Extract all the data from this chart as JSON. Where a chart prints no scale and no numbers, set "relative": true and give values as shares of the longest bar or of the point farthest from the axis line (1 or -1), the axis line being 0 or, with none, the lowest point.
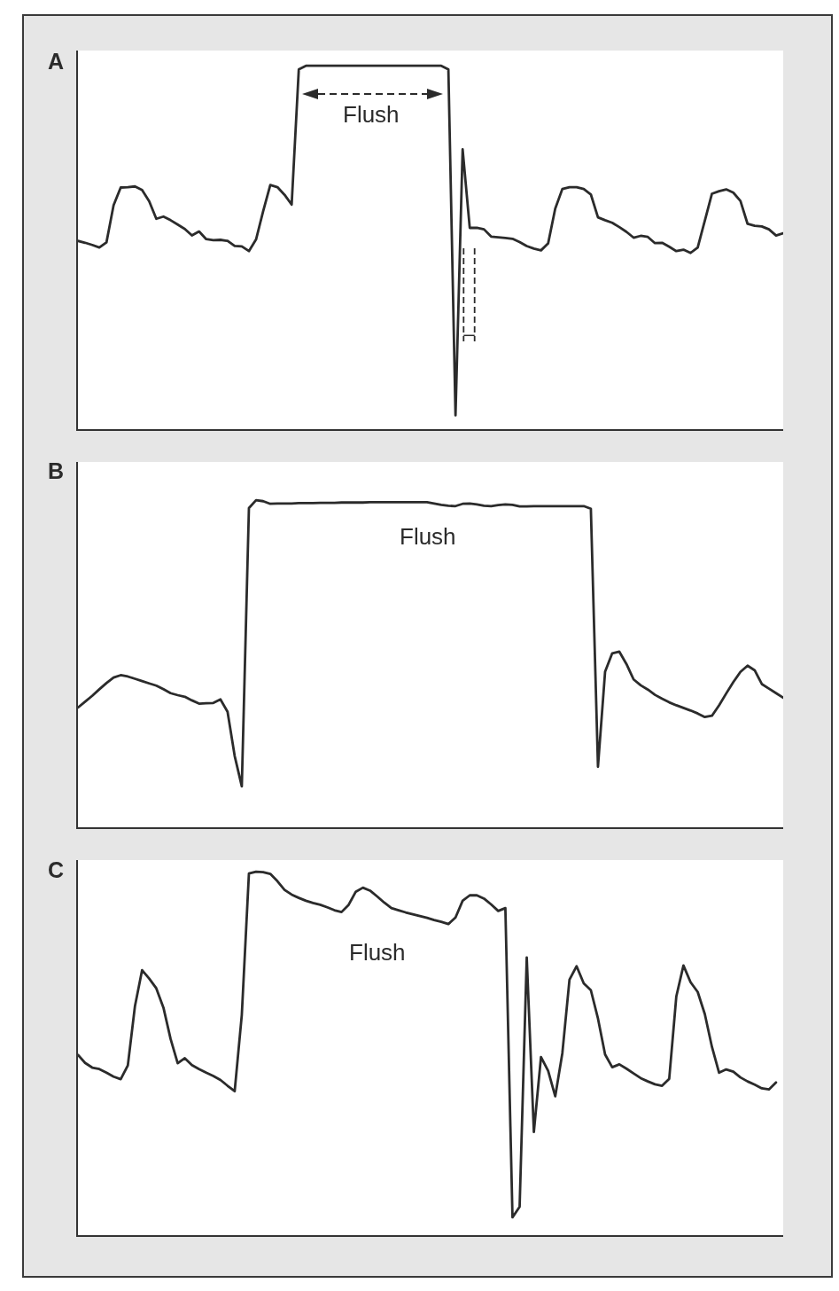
{
  "chart_data": [
    {
      "type": "line",
      "title": "A",
      "annotations": [
        "Flush"
      ],
      "relative": true,
      "color": "#2b2b2b",
      "categories": [
        null,
        null,
        null,
        null,
        null,
        null,
        null,
        null,
        null,
        null,
        null,
        null,
        null,
        null,
        null,
        null,
        null,
        null,
        null,
        null,
        null,
        null,
        null,
        null,
        null,
        null,
        null,
        null,
        null,
        null,
        null,
        null,
        null,
        null,
        null,
        null,
        null,
        null,
        null,
        null,
        null,
        null,
        null,
        null,
        null,
        null,
        null,
        null,
        null,
        null,
        null,
        null,
        null,
        null,
        null,
        null,
        null,
        null,
        null,
        null,
        null,
        null,
        null,
        null,
        null,
        null,
        null,
        null,
        null,
        null,
        null,
        null,
        null,
        null,
        null,
        null,
        null,
        null,
        null,
        null,
        null,
        null,
        null,
        null,
        null,
        null,
        null,
        null,
        null,
        null,
        null,
        null,
        null,
        null,
        null,
        null,
        null,
        null,
        null,
        null
      ],
      "values": [
        0.518,
        0.513,
        0.507,
        0.5,
        0.514,
        0.616,
        0.665,
        0.666,
        0.668,
        0.658,
        0.627,
        0.579,
        0.585,
        0.575,
        0.563,
        0.551,
        0.533,
        0.544,
        0.523,
        0.52,
        0.521,
        0.518,
        0.504,
        0.503,
        0.49,
        0.522,
        0.6,
        0.672,
        0.666,
        0.645,
        0.618,
        0.99,
        1,
        1,
        1,
        1,
        1,
        1,
        1,
        1,
        1,
        1,
        1,
        1,
        1,
        1,
        1,
        1,
        1,
        1,
        1,
        1,
        0.99,
        0.038,
        0.77,
        0.554,
        0.554,
        0.55,
        0.53,
        0.528,
        0.526,
        0.524,
        0.515,
        0.504,
        0.497,
        0.492,
        0.511,
        0.607,
        0.661,
        0.666,
        0.666,
        0.661,
        0.646,
        0.583,
        0.575,
        0.568,
        0.556,
        0.543,
        0.527,
        0.532,
        0.529,
        0.512,
        0.513,
        0.502,
        0.49,
        0.494,
        0.485,
        0.5,
        0.574,
        0.648,
        0.655,
        0.66,
        0.651,
        0.628,
        0.565,
        0.56,
        0.558,
        0.55,
        0.533,
        0.539
      ]
    },
    {
      "type": "line",
      "title": "B",
      "annotations": [
        "Flush"
      ],
      "relative": true,
      "color": "#2b2b2b",
      "categories": [
        null,
        null,
        null,
        null,
        null,
        null,
        null,
        null,
        null,
        null,
        null,
        null,
        null,
        null,
        null,
        null,
        null,
        null,
        null,
        null,
        null,
        null,
        null,
        null,
        null,
        null,
        null,
        null,
        null,
        null,
        null,
        null,
        null,
        null,
        null,
        null,
        null,
        null,
        null,
        null,
        null,
        null,
        null,
        null,
        null,
        null,
        null,
        null,
        null,
        null,
        null,
        null,
        null,
        null,
        null,
        null,
        null,
        null,
        null,
        null,
        null,
        null,
        null,
        null,
        null,
        null,
        null,
        null,
        null,
        null,
        null,
        null,
        null,
        null,
        null,
        null,
        null,
        null,
        null,
        null,
        null,
        null,
        null,
        null,
        null,
        null,
        null,
        null,
        null,
        null,
        null,
        null,
        null,
        null,
        null,
        null,
        null,
        null,
        null,
        null
      ],
      "values": [
        0.366,
        0.384,
        0.402,
        0.422,
        0.441,
        0.458,
        0.465,
        0.461,
        0.454,
        0.447,
        0.44,
        0.433,
        0.422,
        0.41,
        0.404,
        0.399,
        0.388,
        0.378,
        0.379,
        0.38,
        0.391,
        0.353,
        0.218,
        0.125,
        0.976,
        1,
        0.997,
        0.989,
        0.99,
        0.99,
        0.99,
        0.991,
        0.991,
        0.991,
        0.992,
        0.992,
        0.992,
        0.993,
        0.993,
        0.993,
        0.993,
        0.994,
        0.994,
        0.994,
        0.994,
        0.994,
        0.994,
        0.994,
        0.994,
        0.994,
        0.99,
        0.986,
        0.983,
        0.982,
        0.989,
        0.99,
        0.987,
        0.983,
        0.982,
        0.985,
        0.987,
        0.986,
        0.981,
        0.981,
        0.982,
        0.982,
        0.982,
        0.982,
        0.982,
        0.982,
        0.982,
        0.982,
        0.974,
        0.185,
        0.476,
        0.532,
        0.537,
        0.499,
        0.452,
        0.434,
        0.421,
        0.405,
        0.393,
        0.382,
        0.373,
        0.365,
        0.357,
        0.348,
        0.337,
        0.341,
        0.373,
        0.409,
        0.444,
        0.475,
        0.494,
        0.48,
        0.438,
        0.424,
        0.41,
        0.396
      ]
    },
    {
      "type": "line",
      "title": "C",
      "annotations": [
        "Flush"
      ],
      "relative": true,
      "color": "#2b2b2b",
      "categories": [
        null,
        null,
        null,
        null,
        null,
        null,
        null,
        null,
        null,
        null,
        null,
        null,
        null,
        null,
        null,
        null,
        null,
        null,
        null,
        null,
        null,
        null,
        null,
        null,
        null,
        null,
        null,
        null,
        null,
        null,
        null,
        null,
        null,
        null,
        null,
        null,
        null,
        null,
        null,
        null,
        null,
        null,
        null,
        null,
        null,
        null,
        null,
        null,
        null,
        null,
        null,
        null,
        null,
        null,
        null,
        null,
        null,
        null,
        null,
        null,
        null,
        null,
        null,
        null,
        null,
        null,
        null,
        null,
        null,
        null,
        null,
        null,
        null,
        null,
        null,
        null,
        null,
        null,
        null,
        null,
        null,
        null,
        null,
        null,
        null,
        null,
        null,
        null,
        null,
        null,
        null,
        null,
        null,
        null,
        null,
        null,
        null,
        null,
        null,
        null
      ],
      "values": [
        0.496,
        0.474,
        0.461,
        0.457,
        0.447,
        0.436,
        0.429,
        0.467,
        0.63,
        0.729,
        0.706,
        0.679,
        0.626,
        0.54,
        0.473,
        0.487,
        0.468,
        0.457,
        0.447,
        0.438,
        0.427,
        0.411,
        0.396,
        0.606,
        0.995,
        1,
        0.999,
        0.994,
        0.974,
        0.95,
        0.937,
        0.928,
        0.92,
        0.914,
        0.909,
        0.902,
        0.894,
        0.889,
        0.909,
        0.945,
        0.956,
        0.948,
        0.932,
        0.915,
        0.9,
        0.894,
        0.888,
        0.883,
        0.878,
        0.873,
        0.867,
        0.862,
        0.856,
        0.874,
        0.92,
        0.935,
        0.935,
        0.926,
        0.91,
        0.892,
        0.9,
        0.049,
        0.078,
        0.764,
        0.284,
        0.49,
        0.452,
        0.382,
        0.501,
        0.703,
        0.74,
        0.693,
        0.674,
        0.596,
        0.497,
        0.462,
        0.47,
        0.458,
        0.445,
        0.432,
        0.423,
        0.415,
        0.411,
        0.43,
        0.657,
        0.742,
        0.696,
        0.669,
        0.608,
        0.518,
        0.447,
        0.456,
        0.45,
        0.434,
        0.423,
        0.414,
        0.404,
        0.401,
        0.42,
        null
      ]
    }
  ]
}
